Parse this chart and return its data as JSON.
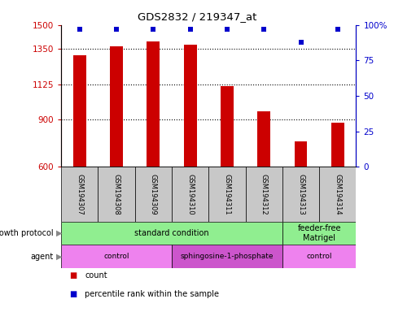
{
  "title": "GDS2832 / 219347_at",
  "samples": [
    "GSM194307",
    "GSM194308",
    "GSM194309",
    "GSM194310",
    "GSM194311",
    "GSM194312",
    "GSM194313",
    "GSM194314"
  ],
  "counts": [
    1310,
    1365,
    1395,
    1375,
    1110,
    950,
    760,
    880
  ],
  "percentile_ranks": [
    97,
    97,
    97,
    97,
    97,
    97,
    88,
    97
  ],
  "ylim_left": [
    600,
    1500
  ],
  "ylim_right": [
    0,
    100
  ],
  "yticks_left": [
    600,
    900,
    1125,
    1350,
    1500
  ],
  "yticks_right": [
    0,
    25,
    50,
    75,
    100
  ],
  "ytick_labels_right": [
    "0",
    "25",
    "50",
    "75",
    "100%"
  ],
  "grid_values": [
    900,
    1125,
    1350
  ],
  "bar_color": "#cc0000",
  "dot_color": "#0000cc",
  "growth_protocol_groups": [
    {
      "label": "standard condition",
      "start": 0,
      "end": 6,
      "color": "#90ee90"
    },
    {
      "label": "feeder-free\nMatrigel",
      "start": 6,
      "end": 8,
      "color": "#90ee90"
    }
  ],
  "agent_groups": [
    {
      "label": "control",
      "start": 0,
      "end": 3,
      "color": "#ee82ee"
    },
    {
      "label": "sphingosine-1-phosphate",
      "start": 3,
      "end": 6,
      "color": "#cc55cc"
    },
    {
      "label": "control",
      "start": 6,
      "end": 8,
      "color": "#ee82ee"
    }
  ],
  "sample_box_color": "#c8c8c8",
  "legend_count_color": "#cc0000",
  "legend_dot_color": "#0000cc",
  "fig_width": 4.85,
  "fig_height": 3.84,
  "dpi": 100
}
